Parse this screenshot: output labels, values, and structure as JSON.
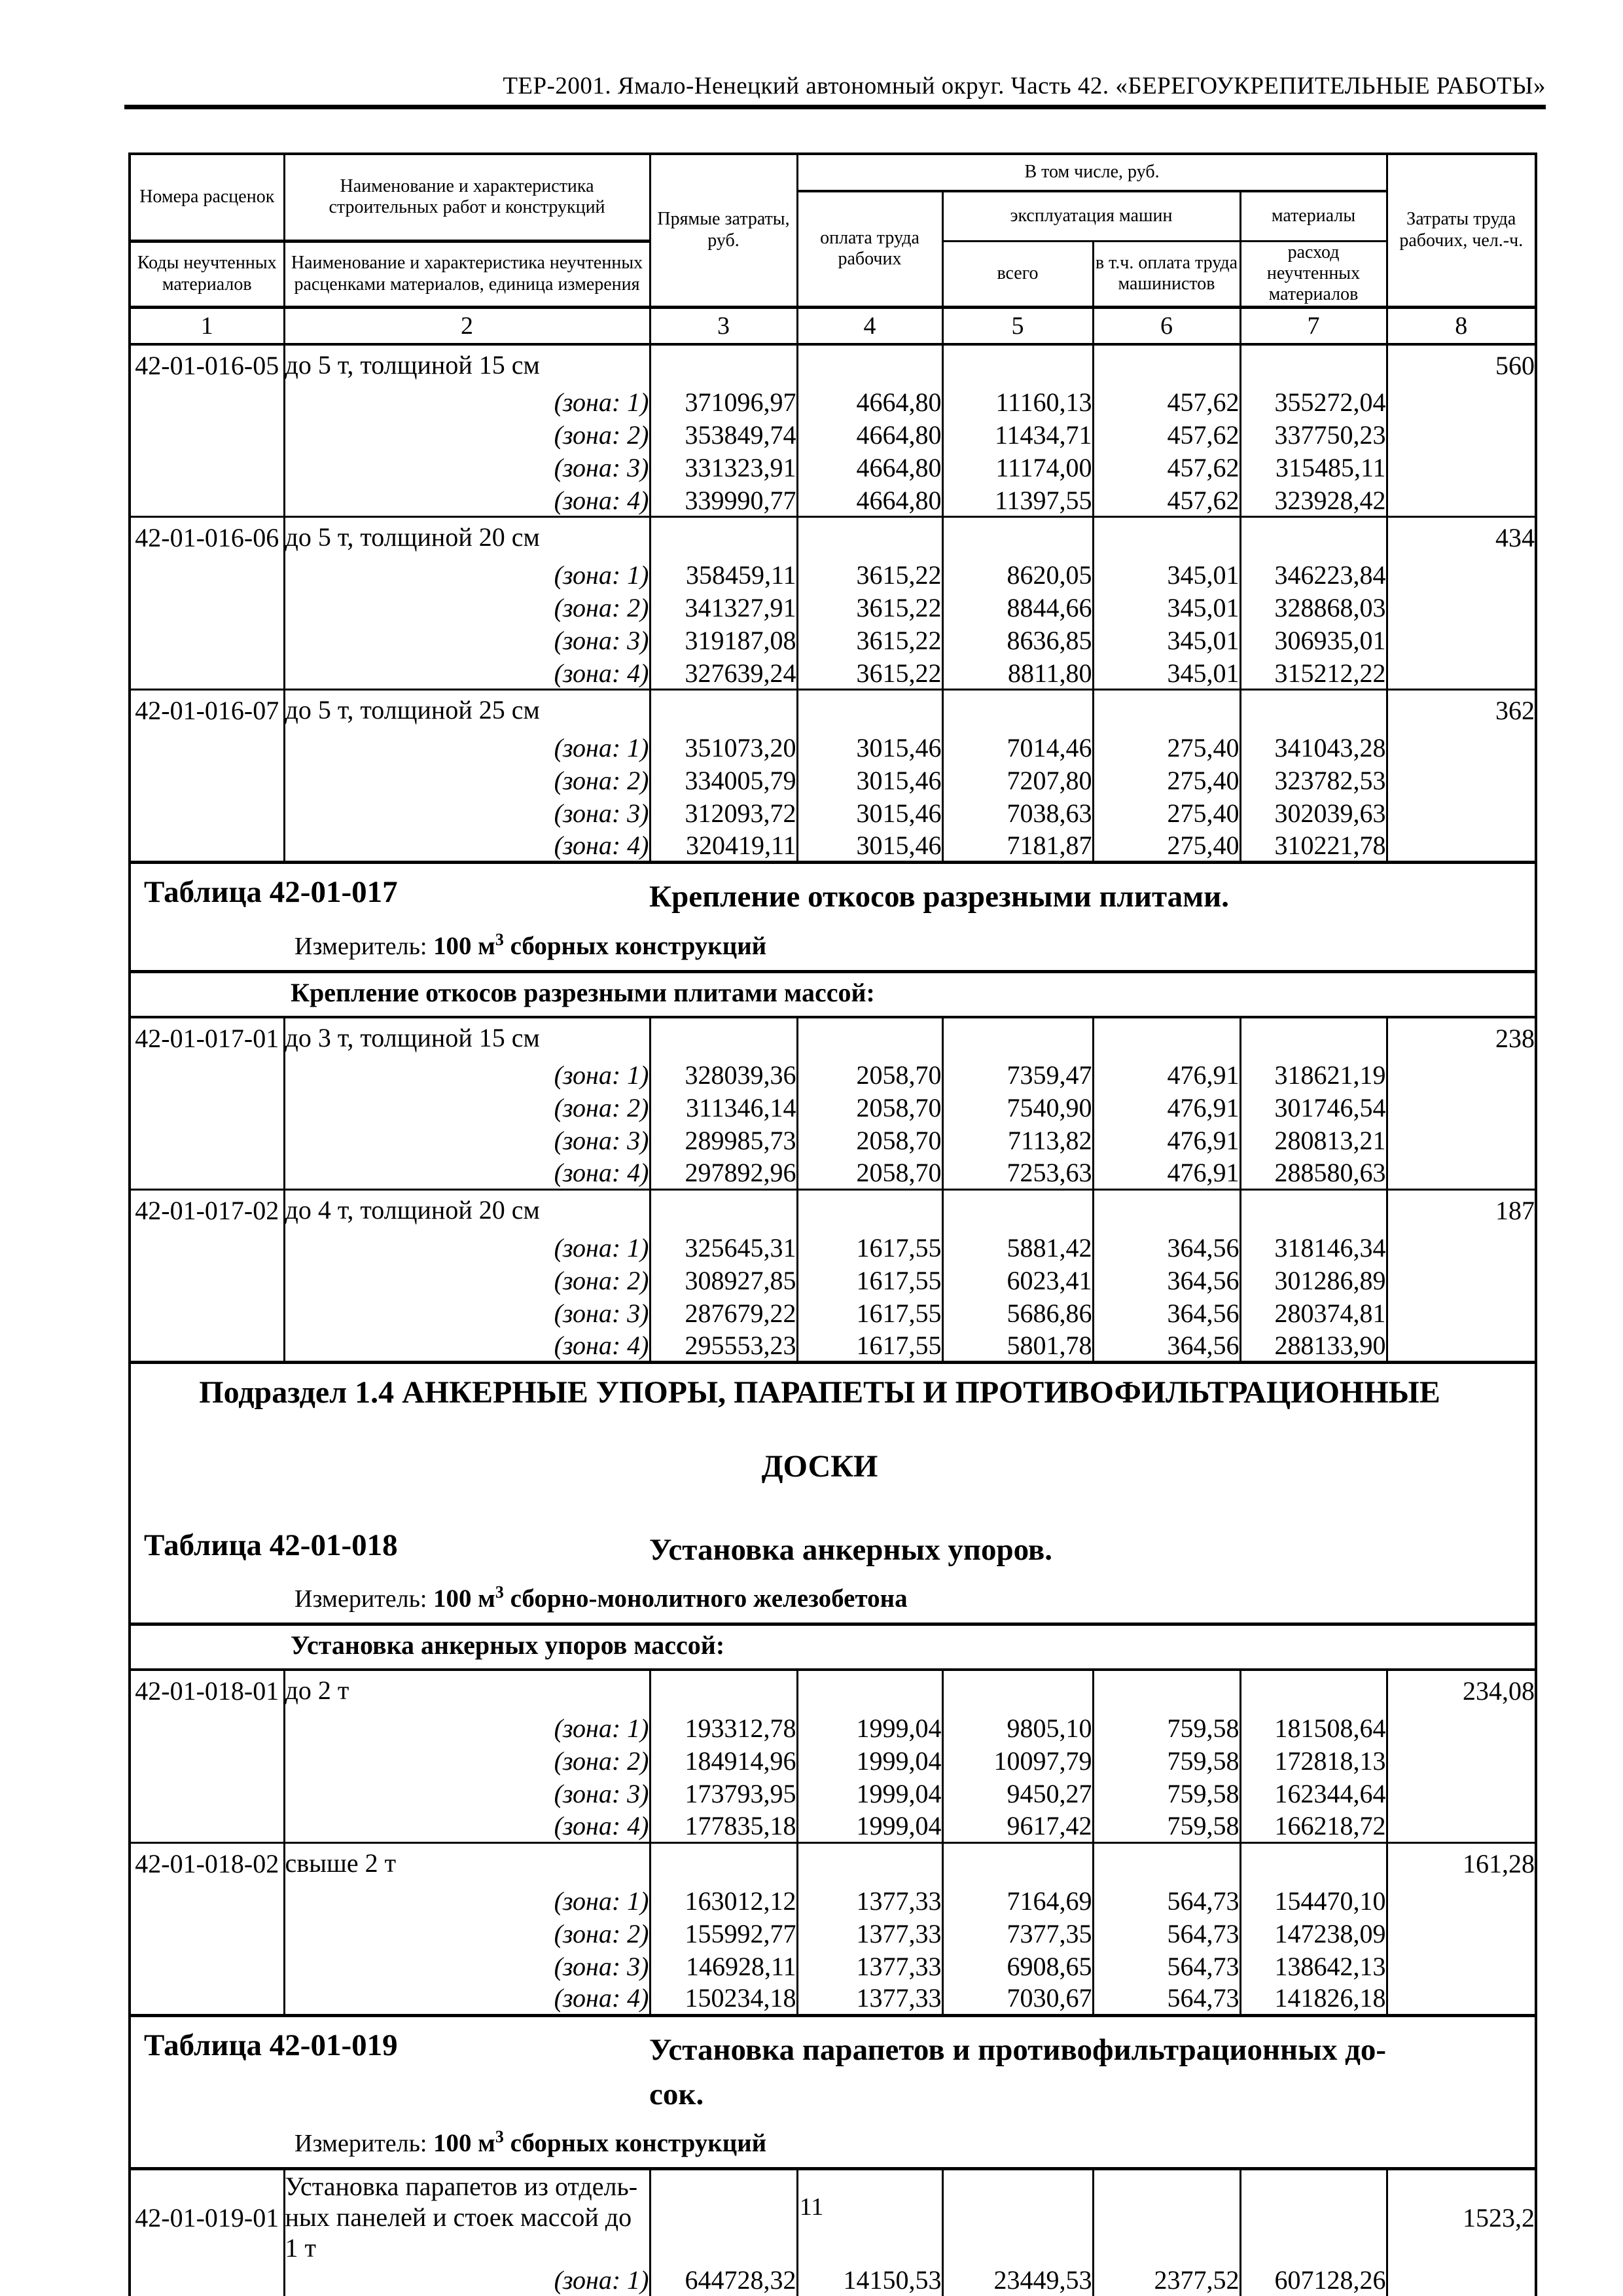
{
  "page": {
    "header_title": "ТЕР-2001. Ямало-Ненецкий автономный округ. Часть 42. «БЕРЕГОУКРЕПИТЕЛЬНЫЕ РАБОТЫ»",
    "page_number": "11"
  },
  "table_header": {
    "col1_top": "Номера расценок",
    "col1_bottom": "Коды неучтенных материалов",
    "col2_top": "Наименование и характеристика строительных работ и конструкций",
    "col2_bottom": "Наименование и характеристика неучтенных расценками материалов, единица измерения",
    "col3": "Прямые затраты, руб.",
    "group_total": "В том числе, руб.",
    "col4": "оплата труда рабочих",
    "group_mach": "эксплуатация машин",
    "col5": "всего",
    "col6": "в т.ч. оплата труда машинистов",
    "group_mat": "материалы",
    "col7": "расход неучтенных материалов",
    "col8": "Затраты труда рабочих, чел.-ч.",
    "numbers": [
      "1",
      "2",
      "3",
      "4",
      "5",
      "6",
      "7",
      "8"
    ]
  },
  "blocks": [
    {
      "type": "entry",
      "code": "42-01-016-05",
      "desc": "до 5 т, толщиной 15 см",
      "labor": "560",
      "zones": [
        {
          "label": "(зона: 1)",
          "values": [
            "371096,97",
            "4664,80",
            "11160,13",
            "457,62",
            "355272,04"
          ]
        },
        {
          "label": "(зона: 2)",
          "values": [
            "353849,74",
            "4664,80",
            "11434,71",
            "457,62",
            "337750,23"
          ]
        },
        {
          "label": "(зона: 3)",
          "values": [
            "331323,91",
            "4664,80",
            "11174,00",
            "457,62",
            "315485,11"
          ]
        },
        {
          "label": "(зона: 4)",
          "values": [
            "339990,77",
            "4664,80",
            "11397,55",
            "457,62",
            "323928,42"
          ]
        }
      ]
    },
    {
      "type": "entry",
      "code": "42-01-016-06",
      "desc": "до 5 т, толщиной 20 см",
      "labor": "434",
      "zones": [
        {
          "label": "(зона: 1)",
          "values": [
            "358459,11",
            "3615,22",
            "8620,05",
            "345,01",
            "346223,84"
          ]
        },
        {
          "label": "(зона: 2)",
          "values": [
            "341327,91",
            "3615,22",
            "8844,66",
            "345,01",
            "328868,03"
          ]
        },
        {
          "label": "(зона: 3)",
          "values": [
            "319187,08",
            "3615,22",
            "8636,85",
            "345,01",
            "306935,01"
          ]
        },
        {
          "label": "(зона: 4)",
          "values": [
            "327639,24",
            "3615,22",
            "8811,80",
            "345,01",
            "315212,22"
          ]
        }
      ]
    },
    {
      "type": "entry",
      "code": "42-01-016-07",
      "desc": "до 5 т, толщиной 25 см",
      "labor": "362",
      "zones": [
        {
          "label": "(зона: 1)",
          "values": [
            "351073,20",
            "3015,46",
            "7014,46",
            "275,40",
            "341043,28"
          ]
        },
        {
          "label": "(зона: 2)",
          "values": [
            "334005,79",
            "3015,46",
            "7207,80",
            "275,40",
            "323782,53"
          ]
        },
        {
          "label": "(зона: 3)",
          "values": [
            "312093,72",
            "3015,46",
            "7038,63",
            "275,40",
            "302039,63"
          ]
        },
        {
          "label": "(зона: 4)",
          "values": [
            "320419,11",
            "3015,46",
            "7181,87",
            "275,40",
            "310221,78"
          ]
        }
      ]
    },
    {
      "type": "title",
      "label": "Таблица 42-01-017",
      "title": "Крепление откосов разрезными плитами.",
      "meter_prefix": "Измеритель: ",
      "meter_main": "100 м",
      "meter_sup": "3",
      "meter_rest": " сборных конструкций"
    },
    {
      "type": "intro",
      "text": "Крепление откосов разрезными плитами массой:"
    },
    {
      "type": "entry",
      "code": "42-01-017-01",
      "desc": "до 3 т, толщиной 15 см",
      "labor": "238",
      "zones": [
        {
          "label": "(зона: 1)",
          "values": [
            "328039,36",
            "2058,70",
            "7359,47",
            "476,91",
            "318621,19"
          ]
        },
        {
          "label": "(зона: 2)",
          "values": [
            "311346,14",
            "2058,70",
            "7540,90",
            "476,91",
            "301746,54"
          ]
        },
        {
          "label": "(зона: 3)",
          "values": [
            "289985,73",
            "2058,70",
            "7113,82",
            "476,91",
            "280813,21"
          ]
        },
        {
          "label": "(зона: 4)",
          "values": [
            "297892,96",
            "2058,70",
            "7253,63",
            "476,91",
            "288580,63"
          ]
        }
      ]
    },
    {
      "type": "entry",
      "code": "42-01-017-02",
      "desc": "до 4 т, толщиной 20 см",
      "labor": "187",
      "zones": [
        {
          "label": "(зона: 1)",
          "values": [
            "325645,31",
            "1617,55",
            "5881,42",
            "364,56",
            "318146,34"
          ]
        },
        {
          "label": "(зона: 2)",
          "values": [
            "308927,85",
            "1617,55",
            "6023,41",
            "364,56",
            "301286,89"
          ]
        },
        {
          "label": "(зона: 3)",
          "values": [
            "287679,22",
            "1617,55",
            "5686,86",
            "364,56",
            "280374,81"
          ]
        },
        {
          "label": "(зона: 4)",
          "values": [
            "295553,23",
            "1617,55",
            "5801,78",
            "364,56",
            "288133,90"
          ]
        }
      ]
    },
    {
      "type": "title",
      "heading_line1": "Подраздел 1.4 АНКЕРНЫЕ УПОРЫ, ПАРАПЕТЫ И ПРОТИВОФИЛЬТРАЦИОННЫЕ",
      "heading_line2": "ДОСКИ",
      "label": "Таблица 42-01-018",
      "title": "Установка анкерных упоров.",
      "meter_prefix": "Измеритель: ",
      "meter_main": "100 м",
      "meter_sup": "3",
      "meter_rest": " сборно-монолитного железобетона"
    },
    {
      "type": "intro",
      "text": "Установка анкерных упоров массой:"
    },
    {
      "type": "entry",
      "code": "42-01-018-01",
      "desc": "до 2 т",
      "labor": "234,08",
      "zones": [
        {
          "label": "(зона: 1)",
          "values": [
            "193312,78",
            "1999,04",
            "9805,10",
            "759,58",
            "181508,64"
          ]
        },
        {
          "label": "(зона: 2)",
          "values": [
            "184914,96",
            "1999,04",
            "10097,79",
            "759,58",
            "172818,13"
          ]
        },
        {
          "label": "(зона: 3)",
          "values": [
            "173793,95",
            "1999,04",
            "9450,27",
            "759,58",
            "162344,64"
          ]
        },
        {
          "label": "(зона: 4)",
          "values": [
            "177835,18",
            "1999,04",
            "9617,42",
            "759,58",
            "166218,72"
          ]
        }
      ]
    },
    {
      "type": "entry",
      "code": "42-01-018-02",
      "desc": "свыше 2 т",
      "labor": "161,28",
      "zones": [
        {
          "label": "(зона: 1)",
          "values": [
            "163012,12",
            "1377,33",
            "7164,69",
            "564,73",
            "154470,10"
          ]
        },
        {
          "label": "(зона: 2)",
          "values": [
            "155992,77",
            "1377,33",
            "7377,35",
            "564,73",
            "147238,09"
          ]
        },
        {
          "label": "(зона: 3)",
          "values": [
            "146928,11",
            "1377,33",
            "6908,65",
            "564,73",
            "138642,13"
          ]
        },
        {
          "label": "(зона: 4)",
          "values": [
            "150234,18",
            "1377,33",
            "7030,67",
            "564,73",
            "141826,18"
          ]
        }
      ]
    },
    {
      "type": "title",
      "label": "Таблица 42-01-019",
      "title": "Установка парапетов и противофильтрационных до-\nсок.",
      "meter_prefix": "Измеритель: ",
      "meter_main": "100 м",
      "meter_sup": "3",
      "meter_rest": " сборных конструкций"
    },
    {
      "type": "entry",
      "tall": true,
      "open_bottom": true,
      "code": "42-01-019-01",
      "desc": "Установка парапетов из отдель-\nных панелей и стоек массой до\n1 т",
      "labor": "1523,2",
      "zones": [
        {
          "label": "(зона: 1)",
          "values": [
            "644728,32",
            "14150,53",
            "23449,53",
            "2377,52",
            "607128,26"
          ]
        }
      ]
    }
  ]
}
